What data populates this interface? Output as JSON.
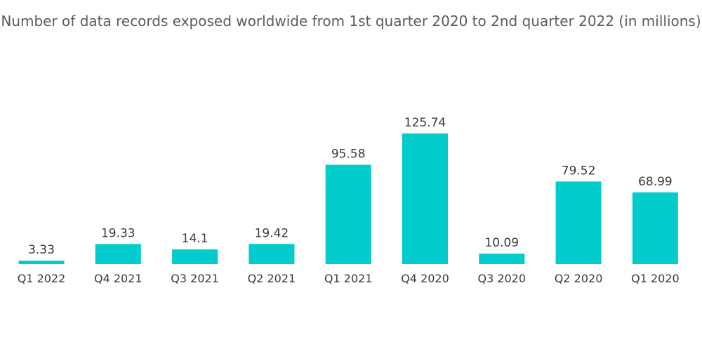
{
  "chart_data": {
    "type": "bar",
    "title": "Number of data records exposed worldwide from 1st quarter 2020 to 2nd quarter 2022 (in millions)",
    "xlabel": "",
    "ylabel": "",
    "categories": [
      "Q1 2022",
      "Q4 2021",
      "Q3 2021",
      "Q2 2021",
      "Q1 2021",
      "Q4 2020",
      "Q3 2020",
      "Q2 2020",
      "Q1 2020"
    ],
    "values": [
      3.33,
      19.33,
      14.1,
      19.42,
      95.58,
      125.74,
      10.09,
      79.52,
      68.99
    ],
    "value_labels": [
      "3.33",
      "19.33",
      "14.1",
      "19.42",
      "95.58",
      "125.74",
      "10.09",
      "79.52",
      "68.99"
    ],
    "ylim": [
      0,
      125.74
    ],
    "grid": false,
    "bar_color": "#00cccc"
  }
}
